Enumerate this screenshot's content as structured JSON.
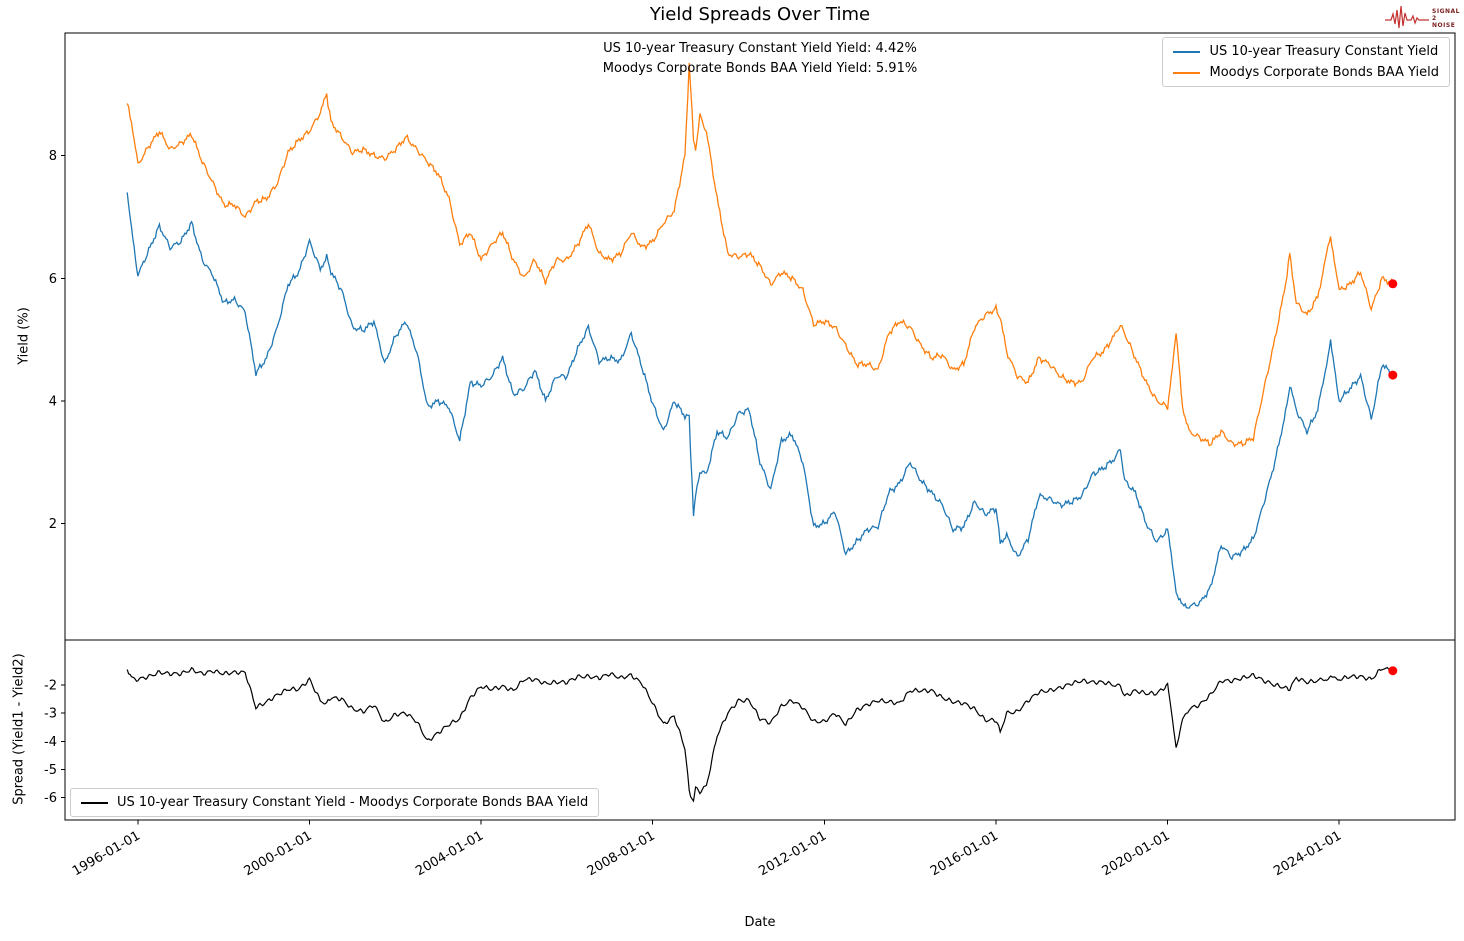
{
  "logo": {
    "lines": [
      "SIGNAL",
      "2",
      "NOISE"
    ]
  },
  "chart_data": {
    "type": "line",
    "title": "Yield Spreads Over Time",
    "xlabel": "Date",
    "grid": false,
    "xlim": [
      1994.3,
      2026.7
    ],
    "xticks": [
      1996,
      2000,
      2004,
      2008,
      2012,
      2016,
      2020,
      2024
    ],
    "xtick_labels": [
      "1996-01-01",
      "2000-01-01",
      "2004-01-01",
      "2008-01-01",
      "2012-01-01",
      "2016-01-01",
      "2020-01-01",
      "2024-01-01"
    ],
    "annotations": [
      "US 10-year Treasury Constant Yield Yield: 4.42%",
      "Moodys Corporate Bonds BAA Yield Yield: 5.91%"
    ],
    "panels": [
      {
        "ylabel": "Yield (%)",
        "ylim": [
          0.1,
          10.0
        ],
        "yticks": [
          2,
          4,
          6,
          8
        ],
        "legend_position": "upper right",
        "legend": [
          "US 10-year Treasury Constant Yield",
          "Moodys Corporate Bonds BAA Yield"
        ]
      },
      {
        "ylabel": "Spread (Yield1 - Yield2)",
        "ylim": [
          -6.8,
          -0.4
        ],
        "yticks": [
          -2,
          -3,
          -4,
          -5,
          -6
        ],
        "legend_position": "lower left",
        "legend": [
          "US 10-year Treasury Constant Yield - Moodys Corporate Bonds BAA Yield"
        ]
      }
    ],
    "series": [
      {
        "name": "US 10-year Treasury Constant Yield",
        "color": "#1f77b4",
        "panel": 0
      },
      {
        "name": "Moodys Corporate Bonds BAA Yield",
        "color": "#ff7f0e",
        "panel": 0
      },
      {
        "name": "US 10-year Treasury Constant Yield - Moodys Corporate Bonds BAA Yield",
        "color": "#000000",
        "panel": 1,
        "derived": "treasury_minus_baa"
      }
    ],
    "marker_color": "#ff0000",
    "end_values": {
      "treasury": 4.42,
      "baa": 5.91,
      "spread": -1.49
    },
    "samples_format": [
      "decimal_year",
      "treasury_yield_pct",
      "baa_yield_pct"
    ],
    "samples": [
      [
        1995.75,
        7.4,
        8.85
      ],
      [
        1995.85,
        6.8,
        8.55
      ],
      [
        1996.0,
        6.05,
        7.85
      ],
      [
        1996.25,
        6.45,
        8.15
      ],
      [
        1996.5,
        6.85,
        8.4
      ],
      [
        1996.75,
        6.5,
        8.1
      ],
      [
        1997.0,
        6.6,
        8.2
      ],
      [
        1997.25,
        6.9,
        8.35
      ],
      [
        1997.5,
        6.3,
        7.9
      ],
      [
        1997.75,
        6.05,
        7.55
      ],
      [
        1998.0,
        5.6,
        7.2
      ],
      [
        1998.25,
        5.65,
        7.2
      ],
      [
        1998.5,
        5.45,
        7.0
      ],
      [
        1998.75,
        4.45,
        7.25
      ],
      [
        1999.0,
        4.7,
        7.3
      ],
      [
        1999.25,
        5.2,
        7.55
      ],
      [
        1999.5,
        5.9,
        8.05
      ],
      [
        1999.75,
        6.1,
        8.25
      ],
      [
        2000.0,
        6.6,
        8.4
      ],
      [
        2000.25,
        6.15,
        8.7
      ],
      [
        2000.4,
        6.35,
        9.0
      ],
      [
        2000.5,
        6.1,
        8.55
      ],
      [
        2000.75,
        5.8,
        8.3
      ],
      [
        2001.0,
        5.2,
        8.05
      ],
      [
        2001.25,
        5.15,
        8.1
      ],
      [
        2001.5,
        5.3,
        8.0
      ],
      [
        2001.75,
        4.6,
        7.95
      ],
      [
        2002.0,
        5.05,
        8.1
      ],
      [
        2002.25,
        5.3,
        8.3
      ],
      [
        2002.5,
        4.8,
        8.1
      ],
      [
        2002.75,
        3.9,
        7.9
      ],
      [
        2003.0,
        4.0,
        7.7
      ],
      [
        2003.25,
        3.9,
        7.3
      ],
      [
        2003.5,
        3.35,
        6.55
      ],
      [
        2003.75,
        4.3,
        6.75
      ],
      [
        2004.0,
        4.25,
        6.3
      ],
      [
        2004.25,
        4.4,
        6.55
      ],
      [
        2004.5,
        4.7,
        6.75
      ],
      [
        2004.75,
        4.1,
        6.3
      ],
      [
        2005.0,
        4.2,
        6.0
      ],
      [
        2005.25,
        4.5,
        6.3
      ],
      [
        2005.5,
        4.0,
        5.95
      ],
      [
        2005.75,
        4.4,
        6.3
      ],
      [
        2006.0,
        4.4,
        6.3
      ],
      [
        2006.25,
        4.85,
        6.55
      ],
      [
        2006.5,
        5.2,
        6.9
      ],
      [
        2006.75,
        4.65,
        6.4
      ],
      [
        2007.0,
        4.7,
        6.3
      ],
      [
        2007.25,
        4.65,
        6.4
      ],
      [
        2007.5,
        5.1,
        6.75
      ],
      [
        2007.75,
        4.55,
        6.5
      ],
      [
        2008.0,
        3.95,
        6.6
      ],
      [
        2008.25,
        3.5,
        6.9
      ],
      [
        2008.5,
        4.0,
        7.1
      ],
      [
        2008.75,
        3.75,
        8.0
      ],
      [
        2008.85,
        3.75,
        9.5
      ],
      [
        2008.95,
        2.1,
        8.3
      ],
      [
        2009.0,
        2.45,
        8.1
      ],
      [
        2009.1,
        2.85,
        8.65
      ],
      [
        2009.25,
        2.8,
        8.4
      ],
      [
        2009.5,
        3.5,
        7.3
      ],
      [
        2009.75,
        3.4,
        6.4
      ],
      [
        2010.0,
        3.8,
        6.35
      ],
      [
        2010.25,
        3.85,
        6.4
      ],
      [
        2010.5,
        3.0,
        6.2
      ],
      [
        2010.75,
        2.55,
        5.9
      ],
      [
        2011.0,
        3.35,
        6.1
      ],
      [
        2011.25,
        3.45,
        6.0
      ],
      [
        2011.5,
        3.0,
        5.8
      ],
      [
        2011.75,
        1.95,
        5.25
      ],
      [
        2012.0,
        2.0,
        5.3
      ],
      [
        2012.25,
        2.2,
        5.2
      ],
      [
        2012.5,
        1.5,
        4.9
      ],
      [
        2012.75,
        1.7,
        4.6
      ],
      [
        2013.0,
        1.9,
        4.6
      ],
      [
        2013.25,
        1.95,
        4.5
      ],
      [
        2013.5,
        2.5,
        5.1
      ],
      [
        2013.75,
        2.65,
        5.3
      ],
      [
        2014.0,
        3.0,
        5.2
      ],
      [
        2014.25,
        2.7,
        4.9
      ],
      [
        2014.5,
        2.5,
        4.7
      ],
      [
        2014.75,
        2.3,
        4.75
      ],
      [
        2015.0,
        1.9,
        4.5
      ],
      [
        2015.25,
        1.95,
        4.6
      ],
      [
        2015.5,
        2.35,
        5.2
      ],
      [
        2015.75,
        2.15,
        5.4
      ],
      [
        2016.0,
        2.25,
        5.5
      ],
      [
        2016.1,
        1.7,
        5.35
      ],
      [
        2016.25,
        1.8,
        4.8
      ],
      [
        2016.5,
        1.45,
        4.4
      ],
      [
        2016.75,
        1.75,
        4.3
      ],
      [
        2017.0,
        2.45,
        4.7
      ],
      [
        2017.25,
        2.4,
        4.6
      ],
      [
        2017.5,
        2.3,
        4.4
      ],
      [
        2017.75,
        2.35,
        4.3
      ],
      [
        2018.0,
        2.45,
        4.3
      ],
      [
        2018.25,
        2.8,
        4.7
      ],
      [
        2018.5,
        2.9,
        4.8
      ],
      [
        2018.75,
        3.05,
        5.05
      ],
      [
        2018.9,
        3.2,
        5.25
      ],
      [
        2019.0,
        2.7,
        5.1
      ],
      [
        2019.25,
        2.5,
        4.7
      ],
      [
        2019.5,
        2.0,
        4.3
      ],
      [
        2019.75,
        1.7,
        4.0
      ],
      [
        2020.0,
        1.9,
        3.9
      ],
      [
        2020.2,
        0.9,
        5.1
      ],
      [
        2020.35,
        0.65,
        3.9
      ],
      [
        2020.5,
        0.65,
        3.5
      ],
      [
        2020.75,
        0.7,
        3.4
      ],
      [
        2021.0,
        0.95,
        3.3
      ],
      [
        2021.25,
        1.65,
        3.5
      ],
      [
        2021.5,
        1.45,
        3.3
      ],
      [
        2021.75,
        1.55,
        3.3
      ],
      [
        2022.0,
        1.75,
        3.4
      ],
      [
        2022.25,
        2.35,
        4.2
      ],
      [
        2022.5,
        3.0,
        5.0
      ],
      [
        2022.75,
        3.8,
        5.9
      ],
      [
        2022.85,
        4.25,
        6.4
      ],
      [
        2023.0,
        3.85,
        5.6
      ],
      [
        2023.25,
        3.5,
        5.4
      ],
      [
        2023.5,
        3.85,
        5.7
      ],
      [
        2023.8,
        4.95,
        6.7
      ],
      [
        2024.0,
        4.0,
        5.8
      ],
      [
        2024.25,
        4.2,
        5.9
      ],
      [
        2024.5,
        4.4,
        6.1
      ],
      [
        2024.75,
        3.7,
        5.5
      ],
      [
        2025.0,
        4.6,
        6.0
      ],
      [
        2025.25,
        4.42,
        5.91
      ]
    ]
  }
}
